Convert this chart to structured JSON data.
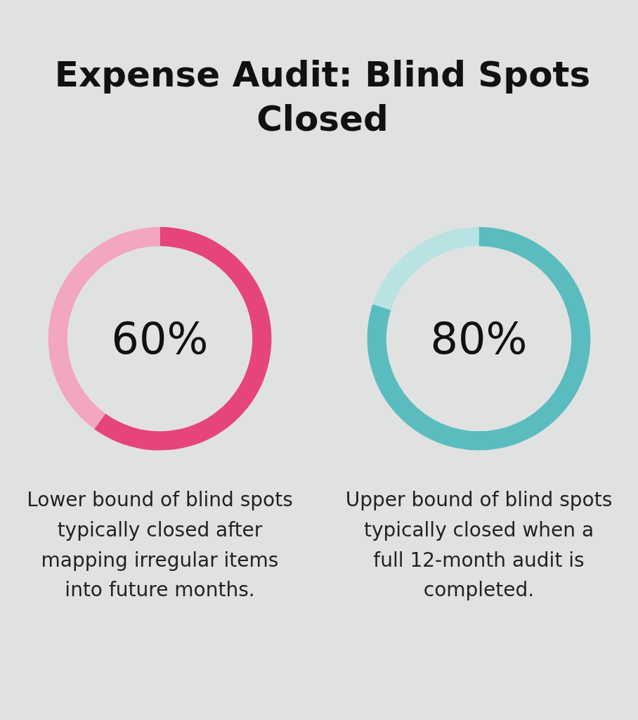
{
  "chart_data": [
    {
      "type": "donut",
      "title": "Expense Audit: Blind Spots Closed",
      "categories": [
        null,
        null
      ],
      "values": [
        60,
        40
      ],
      "colors": [
        "#e5457a",
        "#f2a7bf"
      ],
      "annotations": [
        "60%",
        "Lower bound of blind spots typically closed after mapping irregular items into future months."
      ]
    },
    {
      "type": "donut",
      "categories": [
        null,
        null
      ],
      "values": [
        80,
        20
      ],
      "colors": [
        "#5bbcbf",
        "#b9e2e3"
      ],
      "annotations": [
        "80%",
        "Upper bound of blind spots typically closed when a full 12-month audit is completed."
      ]
    }
  ]
}
